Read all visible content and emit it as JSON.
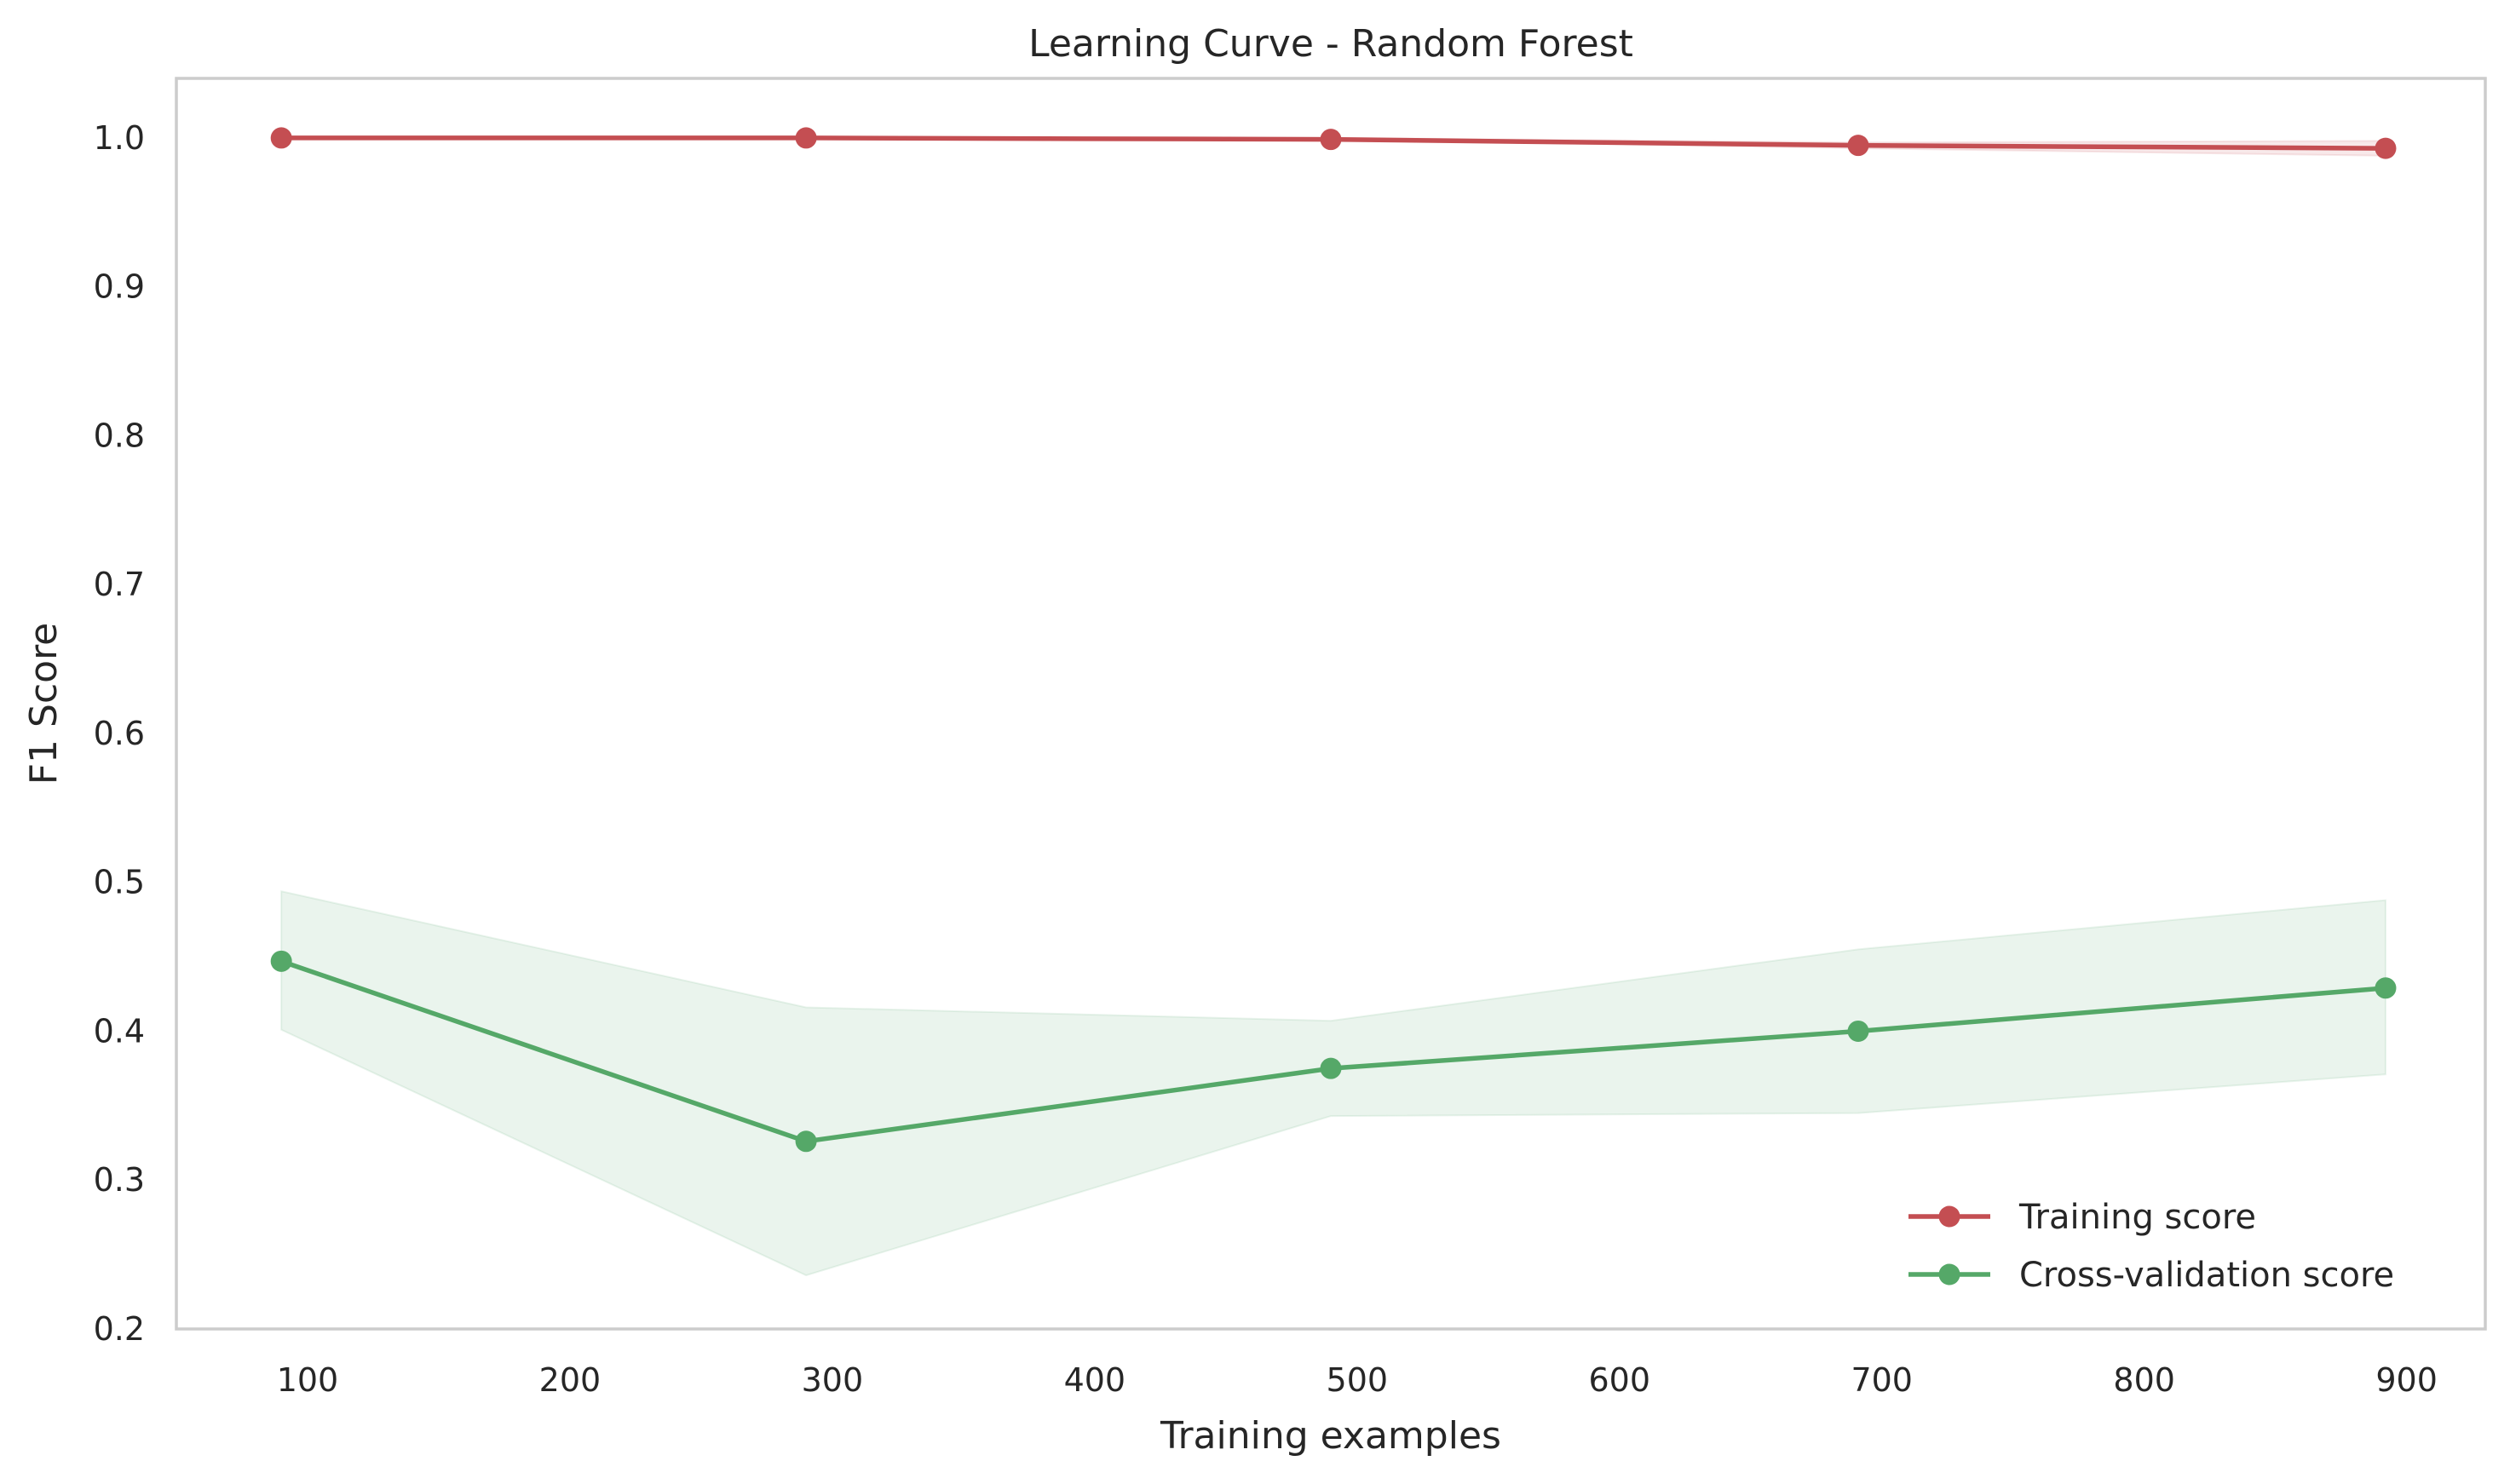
{
  "chart_data": {
    "type": "line",
    "title": "Learning Curve - Random Forest",
    "xlabel": "Training examples",
    "ylabel": "F1 Score",
    "xlim": [
      50,
      930
    ],
    "ylim": [
      0.2,
      1.04
    ],
    "x_ticks": [
      100,
      200,
      300,
      400,
      500,
      600,
      700,
      800,
      900
    ],
    "x_tick_labels": [
      "100",
      "200",
      "300",
      "400",
      "500",
      "600",
      "700",
      "800",
      "900"
    ],
    "y_ticks": [
      0.2,
      0.3,
      0.4,
      0.5,
      0.6,
      0.7,
      0.8,
      0.9,
      1.0
    ],
    "y_tick_labels": [
      "0.2",
      "0.3",
      "0.4",
      "0.5",
      "0.6",
      "0.7",
      "0.8",
      "0.9",
      "1.0"
    ],
    "grid": false,
    "legend_position": "lower-right",
    "x": [
      90,
      290,
      490,
      691,
      892
    ],
    "series": [
      {
        "name": "Training score",
        "color": "#c44e52",
        "marker": "circle",
        "values": [
          1.0,
          1.0,
          0.999,
          0.995,
          0.993
        ],
        "band_lower": [
          1.0,
          1.0,
          0.999,
          0.993,
          0.988
        ],
        "band_upper": [
          1.0,
          1.0,
          1.0,
          0.997,
          0.998
        ]
      },
      {
        "name": "Cross-validation score",
        "color": "#55a868",
        "marker": "circle",
        "values": [
          0.447,
          0.326,
          0.375,
          0.4,
          0.429
        ],
        "band_lower": [
          0.401,
          0.236,
          0.343,
          0.345,
          0.371
        ],
        "band_upper": [
          0.494,
          0.416,
          0.407,
          0.455,
          0.488
        ]
      }
    ]
  }
}
